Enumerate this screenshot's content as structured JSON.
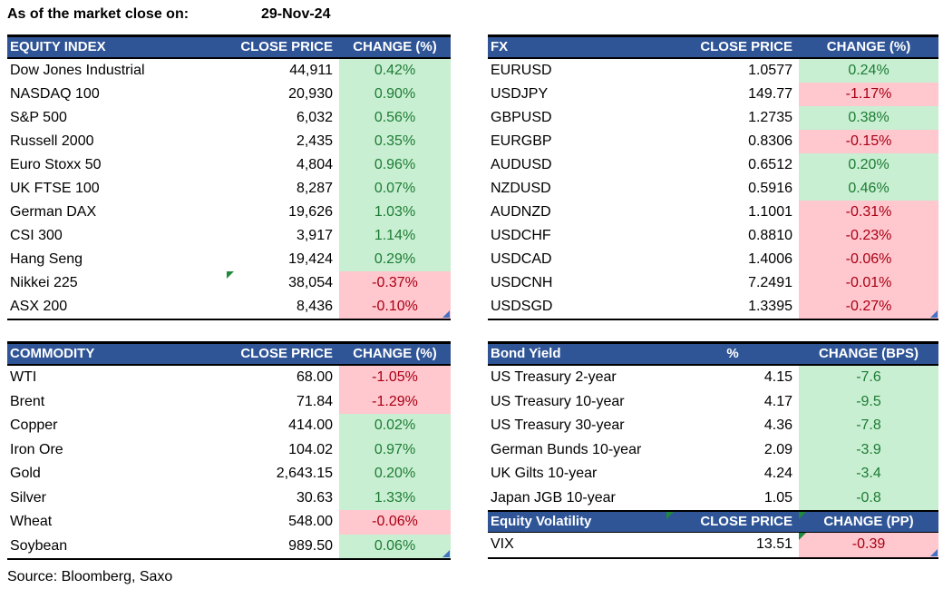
{
  "meta": {
    "as_of_label": "As of the market close on:",
    "as_of_date": "29-Nov-24",
    "source": "Source: Bloomberg, Saxo"
  },
  "colors": {
    "header_bg": "#2F5597",
    "pos_bg": "#C8EFD2",
    "pos_text": "#1E7B34",
    "neg_bg": "#FFC7CE",
    "neg_text": "#A80014",
    "marker_green": "#1F8A3B",
    "marker_blue": "#4472C4"
  },
  "icons": {
    "comment_marker": "green-corner-triangle",
    "more_content_marker": "blue-corner-triangle"
  },
  "tables": {
    "equity": {
      "headers": [
        "EQUITY INDEX",
        "CLOSE PRICE",
        "CHANGE (%)"
      ],
      "rows": [
        {
          "name": "Dow Jones Industrial",
          "close": "44,911",
          "change": "0.42%",
          "dir": "pos"
        },
        {
          "name": "NASDAQ 100",
          "close": "20,930",
          "change": "0.90%",
          "dir": "pos"
        },
        {
          "name": "S&P 500",
          "close": "6,032",
          "change": "0.56%",
          "dir": "pos"
        },
        {
          "name": "Russell 2000",
          "close": "2,435",
          "change": "0.35%",
          "dir": "pos"
        },
        {
          "name": "Euro Stoxx 50",
          "close": "4,804",
          "change": "0.96%",
          "dir": "pos"
        },
        {
          "name": "UK FTSE 100",
          "close": "8,287",
          "change": "0.07%",
          "dir": "pos"
        },
        {
          "name": "German DAX",
          "close": "19,626",
          "change": "1.03%",
          "dir": "pos"
        },
        {
          "name": "CSI 300",
          "close": "3,917",
          "change": "1.14%",
          "dir": "pos"
        },
        {
          "name": "Hang Seng",
          "close": "19,424",
          "change": "0.29%",
          "dir": "pos"
        },
        {
          "name": "Nikkei 225",
          "close": "38,054",
          "change": "-0.37%",
          "dir": "neg",
          "close_marker": true
        },
        {
          "name": "ASX 200",
          "close": "8,436",
          "change": "-0.10%",
          "dir": "neg"
        }
      ]
    },
    "fx": {
      "headers": [
        "FX",
        "CLOSE PRICE",
        "CHANGE (%)"
      ],
      "rows": [
        {
          "name": "EURUSD",
          "close": "1.0577",
          "change": "0.24%",
          "dir": "pos"
        },
        {
          "name": "USDJPY",
          "close": "149.77",
          "change": "-1.17%",
          "dir": "neg"
        },
        {
          "name": "GBPUSD",
          "close": "1.2735",
          "change": "0.38%",
          "dir": "pos"
        },
        {
          "name": "EURGBP",
          "close": "0.8306",
          "change": "-0.15%",
          "dir": "neg"
        },
        {
          "name": "AUDUSD",
          "close": "0.6512",
          "change": "0.20%",
          "dir": "pos"
        },
        {
          "name": "NZDUSD",
          "close": "0.5916",
          "change": "0.46%",
          "dir": "pos"
        },
        {
          "name": "AUDNZD",
          "close": "1.1001",
          "change": "-0.31%",
          "dir": "neg"
        },
        {
          "name": "USDCHF",
          "close": "0.8810",
          "change": "-0.23%",
          "dir": "neg"
        },
        {
          "name": "USDCAD",
          "close": "1.4006",
          "change": "-0.06%",
          "dir": "neg"
        },
        {
          "name": "USDCNH",
          "close": "7.2491",
          "change": "-0.01%",
          "dir": "neg"
        },
        {
          "name": "USDSGD",
          "close": "1.3395",
          "change": "-0.27%",
          "dir": "neg"
        }
      ]
    },
    "commodity": {
      "headers": [
        "COMMODITY",
        "CLOSE PRICE",
        "CHANGE (%)"
      ],
      "rows": [
        {
          "name": "WTI",
          "close": "68.00",
          "change": "-1.05%",
          "dir": "neg"
        },
        {
          "name": "Brent",
          "close": "71.84",
          "change": "-1.29%",
          "dir": "neg"
        },
        {
          "name": "Copper",
          "close": "414.00",
          "change": "0.02%",
          "dir": "pos"
        },
        {
          "name": "Iron Ore",
          "close": "104.02",
          "change": "0.97%",
          "dir": "pos"
        },
        {
          "name": "Gold",
          "close": "2,643.15",
          "change": "0.20%",
          "dir": "pos"
        },
        {
          "name": "Silver",
          "close": "30.63",
          "change": "1.33%",
          "dir": "pos"
        },
        {
          "name": "Wheat",
          "close": "548.00",
          "change": "-0.06%",
          "dir": "neg"
        },
        {
          "name": "Soybean",
          "close": "989.50",
          "change": "0.06%",
          "dir": "pos"
        }
      ]
    },
    "bond": {
      "headers": [
        "Bond Yield",
        "%",
        "CHANGE (BPS)"
      ],
      "rows": [
        {
          "name": "US Treasury 2-year",
          "close": "4.15",
          "change": "-7.6",
          "dir": "pos"
        },
        {
          "name": "US Treasury 10-year",
          "close": "4.17",
          "change": "-9.5",
          "dir": "pos"
        },
        {
          "name": "US Treasury 30-year",
          "close": "4.36",
          "change": "-7.8",
          "dir": "pos"
        },
        {
          "name": "German Bunds 10-year",
          "close": "2.09",
          "change": "-3.9",
          "dir": "pos"
        },
        {
          "name": "UK Gilts 10-year",
          "close": "4.24",
          "change": "-3.4",
          "dir": "pos"
        },
        {
          "name": "Japan JGB 10-year",
          "close": "1.05",
          "change": "-0.8",
          "dir": "pos"
        }
      ]
    },
    "volatility": {
      "headers": [
        "Equity Volatility",
        "CLOSE PRICE",
        "CHANGE (PP)"
      ],
      "rows": [
        {
          "name": "VIX",
          "close": "13.51",
          "change": "-0.39",
          "dir": "neg",
          "chg_marker": true
        }
      ]
    }
  }
}
